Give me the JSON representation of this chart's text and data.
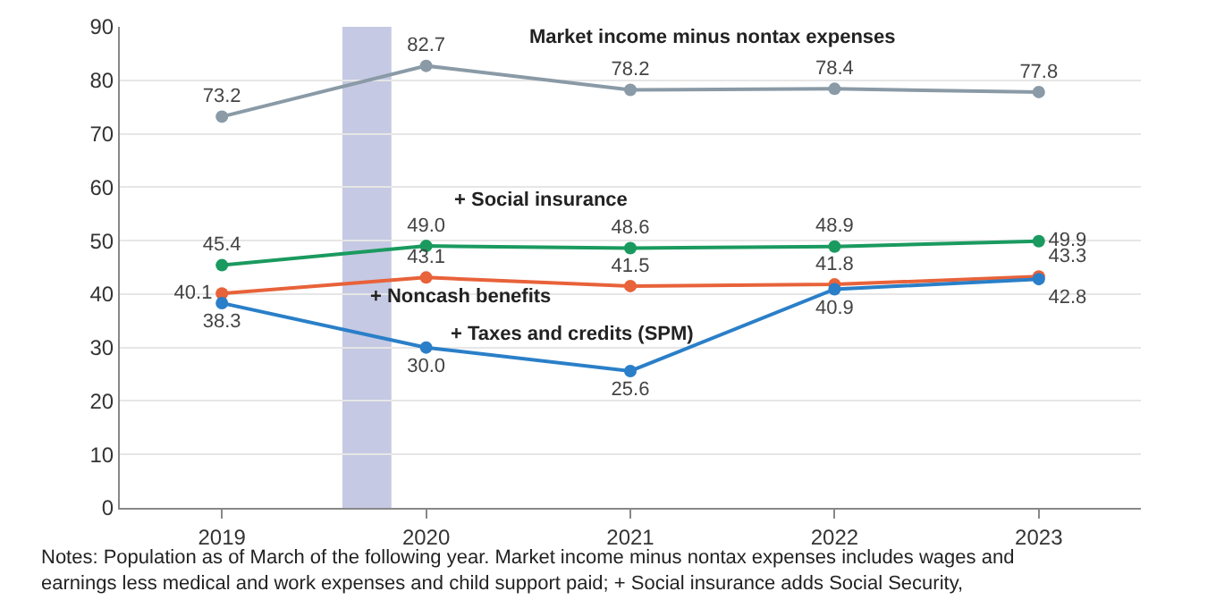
{
  "chart_data": {
    "type": "line",
    "x": [
      2019,
      2020,
      2021,
      2022,
      2023
    ],
    "xlim": [
      2018.5,
      2023.5
    ],
    "xticks": [
      2019,
      2020,
      2021,
      2022,
      2023
    ],
    "ylim": [
      0,
      90
    ],
    "yticks": [
      0,
      10,
      20,
      30,
      40,
      50,
      60,
      70,
      80,
      90
    ],
    "series": [
      {
        "name": "Market income minus nontax expenses",
        "color": "#8a9aa6",
        "values": [
          73.2,
          82.7,
          78.2,
          78.4,
          77.8
        ],
        "value_labels": [
          "73.2",
          "82.7",
          "78.2",
          "78.4",
          "77.8"
        ]
      },
      {
        "name": "+ Social insurance",
        "color": "#1a9a5f",
        "values": [
          45.4,
          49.0,
          48.6,
          48.9,
          49.9
        ],
        "value_labels": [
          "45.4",
          "49.0",
          "48.6",
          "48.9",
          "49.9"
        ]
      },
      {
        "name": "+ Noncash benefits",
        "color": "#e8623a",
        "values": [
          40.1,
          43.1,
          41.5,
          41.8,
          43.3
        ],
        "value_labels": [
          "40.1",
          "43.1",
          "41.5",
          "41.8",
          "43.3"
        ]
      },
      {
        "name": "+ Taxes and credits (SPM)",
        "color": "#2a7fc8",
        "values": [
          38.3,
          30.0,
          25.6,
          40.9,
          42.8
        ],
        "value_labels": [
          "38.3",
          "30.0",
          "25.6",
          "40.9",
          "42.8"
        ]
      }
    ],
    "bands": [
      {
        "axis": "x",
        "from": 2019.59,
        "to": 2019.83,
        "color": "#c5c9e3"
      }
    ],
    "grid": "y",
    "legend": false,
    "marker": "circle",
    "line_style": "solid",
    "annotations": [
      "Notes: Population as of March of the following year. Market income minus nontax expenses includes wages and\nearnings less medical and work expenses and child support paid; + Social insurance adds Social Security,"
    ]
  }
}
